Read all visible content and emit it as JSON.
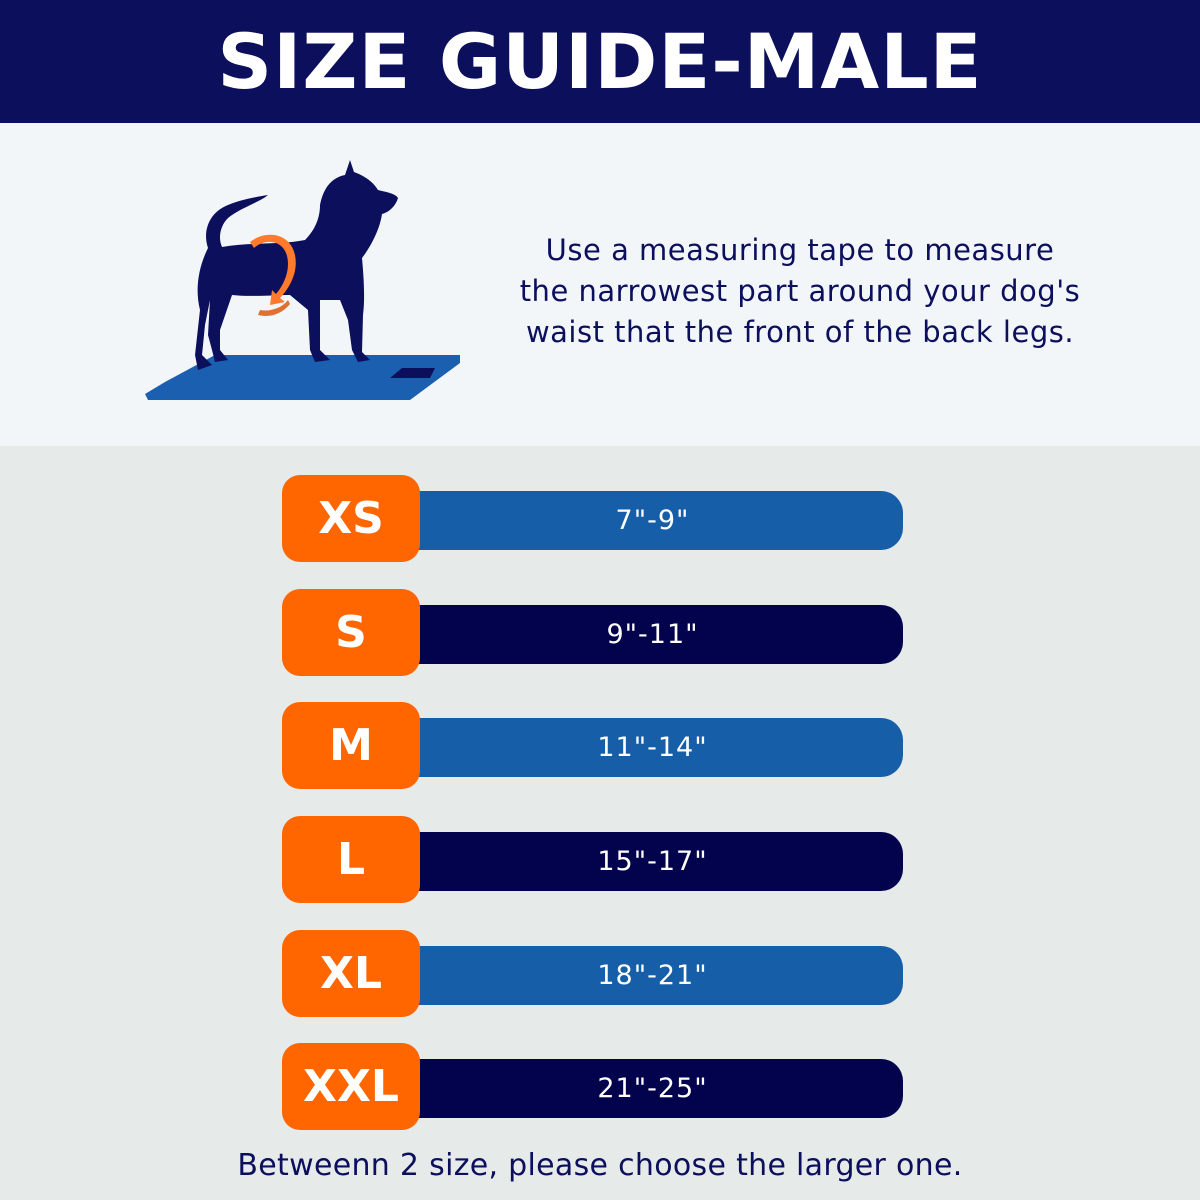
{
  "header": {
    "title": "SIZE GUIDE-MALE"
  },
  "intro": {
    "lines": [
      "Use a measuring tape to measure",
      "the narrowest part around your dog's",
      "waist that the front of the back legs."
    ],
    "illustration": "dog-measuring-waist"
  },
  "sizes": [
    {
      "size": "XS",
      "range": "7\"-9\"",
      "tone": "light"
    },
    {
      "size": "S",
      "range": "9\"-11\"",
      "tone": "dark"
    },
    {
      "size": "M",
      "range": "11\"-14\"",
      "tone": "light"
    },
    {
      "size": "L",
      "range": "15\"-17\"",
      "tone": "dark"
    },
    {
      "size": "XL",
      "range": "18\"-21\"",
      "tone": "light"
    },
    {
      "size": "XXL",
      "range": "21\"-25\"",
      "tone": "dark"
    }
  ],
  "footer": {
    "note": "Betweenn 2 size, please choose the larger one."
  },
  "colors": {
    "navy": "#0b0f5c",
    "blue": "#165ea8",
    "dark_navy": "#03034d",
    "orange": "#ff6600"
  }
}
